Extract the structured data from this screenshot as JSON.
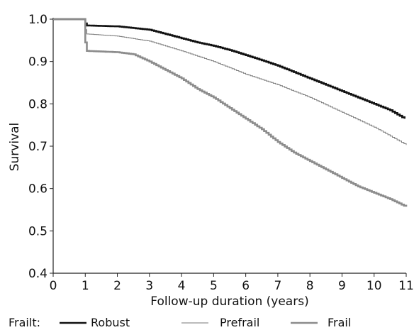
{
  "chart_data": {
    "type": "line",
    "title": "",
    "xlabel": "Follow-up duration (years)",
    "ylabel": "Survival",
    "xlim": [
      0,
      11
    ],
    "ylim": [
      0.4,
      1.0
    ],
    "x_ticks": [
      "0",
      "1",
      "2",
      "3",
      "4",
      "5",
      "6",
      "7",
      "8",
      "9",
      "10",
      "11"
    ],
    "y_ticks": [
      "0.4",
      "0.5",
      "0.6",
      "0.7",
      "0.8",
      "0.9",
      "1.0"
    ],
    "grid": false,
    "legend": {
      "title": "Frailt:",
      "placement": "bottom"
    },
    "series": [
      {
        "name": "Robust",
        "color": "#111111",
        "x": [
          0,
          0.97,
          1.0,
          1.05,
          2,
          3,
          3.5,
          4,
          4.5,
          5,
          5.5,
          6,
          6.5,
          7,
          7.5,
          8,
          8.5,
          9,
          9.5,
          10,
          10.5,
          10.95
        ],
        "y": [
          1.0,
          1.0,
          0.99,
          0.985,
          0.983,
          0.975,
          0.965,
          0.955,
          0.945,
          0.937,
          0.927,
          0.915,
          0.903,
          0.89,
          0.875,
          0.86,
          0.845,
          0.83,
          0.815,
          0.8,
          0.785,
          0.765
        ]
      },
      {
        "name": "Prefrail",
        "color": "#777777",
        "x": [
          0,
          0.97,
          1.0,
          1.05,
          2,
          3,
          4,
          5,
          6,
          7,
          8,
          9,
          10,
          11
        ],
        "y": [
          1.0,
          1.0,
          0.975,
          0.965,
          0.96,
          0.948,
          0.925,
          0.9,
          0.87,
          0.845,
          0.815,
          0.78,
          0.745,
          0.703
        ]
      },
      {
        "name": "Frail",
        "color": "#8c8c8c",
        "x": [
          0,
          0.97,
          1.0,
          1.05,
          2,
          2.5,
          3,
          3.5,
          4,
          4.5,
          5,
          5.5,
          6,
          6.5,
          7,
          7.5,
          8,
          8.5,
          9,
          9.5,
          10,
          10.5,
          11
        ],
        "y": [
          1.0,
          1.0,
          0.945,
          0.925,
          0.922,
          0.917,
          0.9,
          0.88,
          0.86,
          0.835,
          0.815,
          0.79,
          0.765,
          0.74,
          0.71,
          0.685,
          0.665,
          0.645,
          0.625,
          0.605,
          0.59,
          0.575,
          0.557
        ]
      }
    ]
  }
}
